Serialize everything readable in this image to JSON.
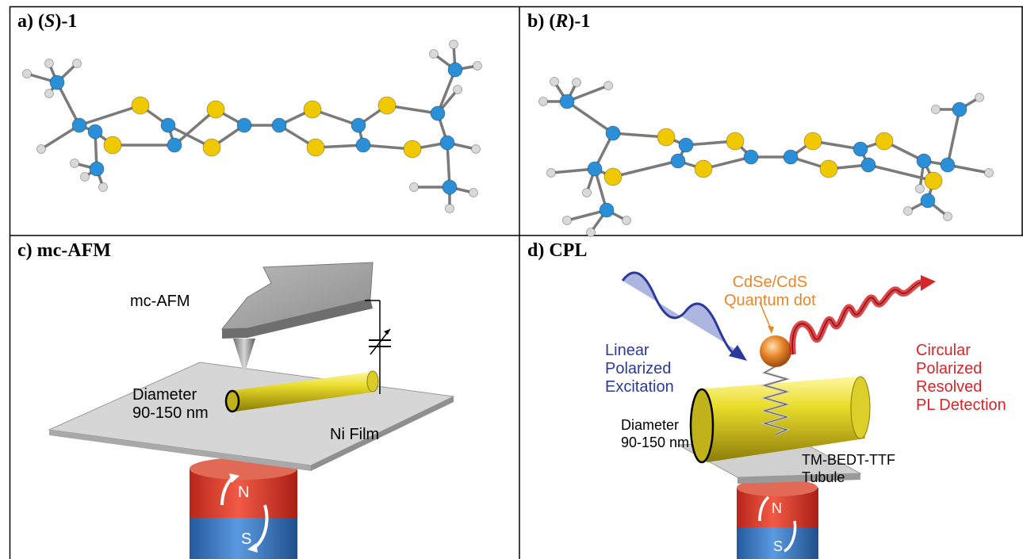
{
  "panels": {
    "a": {
      "prefix": "a) (",
      "italic": "S",
      "suffix": ")-1"
    },
    "b": {
      "prefix": "b) (",
      "italic": "R",
      "suffix": ")-1"
    },
    "c": {
      "title": "c) mc-AFM",
      "afm_label": "mc-AFM",
      "diameter_label": "Diameter",
      "diameter_value": "90-150 nm",
      "film_label": "Ni Film",
      "magnet_north": "N",
      "magnet_south": "S"
    },
    "d": {
      "title": "d) CPL",
      "qd_line1": "CdSe/CdS",
      "qd_line2": "Quantum dot",
      "excitation_line1": "Linear",
      "excitation_line2": "Polarized",
      "excitation_line3": "Excitation",
      "detection_line1": "Circular",
      "detection_line2": "Polarized",
      "detection_line3": "Resolved",
      "detection_line4": "PL Detection",
      "diameter_label": "Diameter",
      "diameter_value": "90-150 nm",
      "tubule_line1": "TM-BEDT-TTF",
      "tubule_line2": "Tubule",
      "magnet_north": "N",
      "magnet_south": "S"
    }
  },
  "colors": {
    "carbon": "#2a8fd6",
    "sulfur": "#f0c800",
    "hydrogen": "#d9d9d9",
    "bond": "#7a7a7a",
    "tube": "#e3d21a",
    "magnet_red": "#e03a2a",
    "magnet_blue": "#3a78c8",
    "excitation": "#2b3a9a",
    "detection": "#d7262a",
    "quantum_dot": "#e8862a"
  }
}
